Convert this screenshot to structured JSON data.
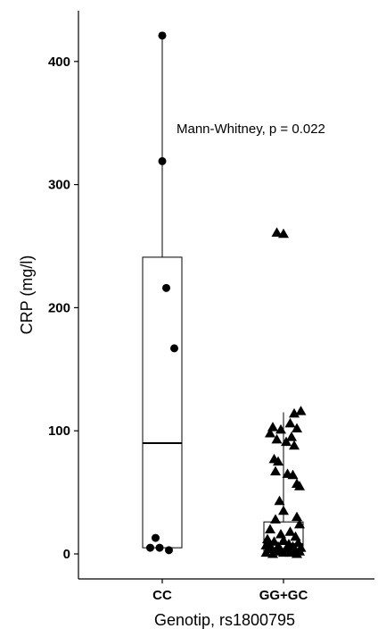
{
  "chart_data": {
    "type": "box",
    "xlabel": "Genotip, rs1800795",
    "ylabel": "CRP (mg/l)",
    "ylim": [
      -20,
      440
    ],
    "yticks": [
      0,
      100,
      200,
      300,
      400
    ],
    "annotation": "Mann-Whitney, p = 0.022",
    "grid": false,
    "categories": [
      "CC",
      "GG+GC"
    ],
    "groups": [
      {
        "category": "CC",
        "marker": "circle",
        "box": {
          "min": 3,
          "q1": 5,
          "median": 90,
          "q3": 241,
          "max": 421
        },
        "points": [
          {
            "x": 0.0,
            "y": 421
          },
          {
            "x": 0.0,
            "y": 319
          },
          {
            "x": 0.03,
            "y": 216
          },
          {
            "x": 0.09,
            "y": 167
          },
          {
            "x": -0.05,
            "y": 13
          },
          {
            "x": -0.09,
            "y": 5
          },
          {
            "x": -0.02,
            "y": 5
          },
          {
            "x": 0.05,
            "y": 3
          }
        ]
      },
      {
        "category": "GG+GC",
        "marker": "triangle",
        "box": {
          "min": 0,
          "q1": 2,
          "median": 8,
          "q3": 26,
          "max": 115
        },
        "points": [
          {
            "x": -0.05,
            "y": 261
          },
          {
            "x": 0.0,
            "y": 260
          },
          {
            "x": 0.13,
            "y": 116
          },
          {
            "x": 0.08,
            "y": 114
          },
          {
            "x": 0.05,
            "y": 106
          },
          {
            "x": -0.08,
            "y": 103
          },
          {
            "x": 0.1,
            "y": 102
          },
          {
            "x": -0.02,
            "y": 101
          },
          {
            "x": -0.1,
            "y": 98
          },
          {
            "x": 0.06,
            "y": 95
          },
          {
            "x": -0.05,
            "y": 93
          },
          {
            "x": 0.02,
            "y": 91
          },
          {
            "x": 0.08,
            "y": 88
          },
          {
            "x": -0.07,
            "y": 77
          },
          {
            "x": -0.04,
            "y": 75
          },
          {
            "x": -0.06,
            "y": 67
          },
          {
            "x": 0.03,
            "y": 65
          },
          {
            "x": 0.07,
            "y": 64
          },
          {
            "x": 0.1,
            "y": 57
          },
          {
            "x": 0.12,
            "y": 55
          },
          {
            "x": -0.03,
            "y": 43
          },
          {
            "x": 0.0,
            "y": 35
          },
          {
            "x": 0.1,
            "y": 30
          },
          {
            "x": -0.06,
            "y": 28
          },
          {
            "x": 0.12,
            "y": 24
          },
          {
            "x": -0.1,
            "y": 20
          },
          {
            "x": 0.05,
            "y": 18
          },
          {
            "x": -0.02,
            "y": 16
          },
          {
            "x": 0.09,
            "y": 14
          },
          {
            "x": -0.12,
            "y": 12
          },
          {
            "x": 0.0,
            "y": 11
          },
          {
            "x": -0.07,
            "y": 10
          },
          {
            "x": 0.11,
            "y": 9
          },
          {
            "x": 0.04,
            "y": 8
          },
          {
            "x": -0.13,
            "y": 7
          },
          {
            "x": 0.07,
            "y": 6
          },
          {
            "x": -0.04,
            "y": 6
          },
          {
            "x": 0.13,
            "y": 5
          },
          {
            "x": -0.09,
            "y": 5
          },
          {
            "x": 0.02,
            "y": 4
          },
          {
            "x": -0.11,
            "y": 4
          },
          {
            "x": 0.09,
            "y": 3
          },
          {
            "x": -0.02,
            "y": 3
          },
          {
            "x": 0.12,
            "y": 2
          },
          {
            "x": -0.06,
            "y": 2
          },
          {
            "x": 0.05,
            "y": 1
          },
          {
            "x": -0.13,
            "y": 1
          },
          {
            "x": 0.0,
            "y": 1
          },
          {
            "x": 0.1,
            "y": 0
          },
          {
            "x": -0.08,
            "y": 0
          }
        ]
      }
    ]
  }
}
